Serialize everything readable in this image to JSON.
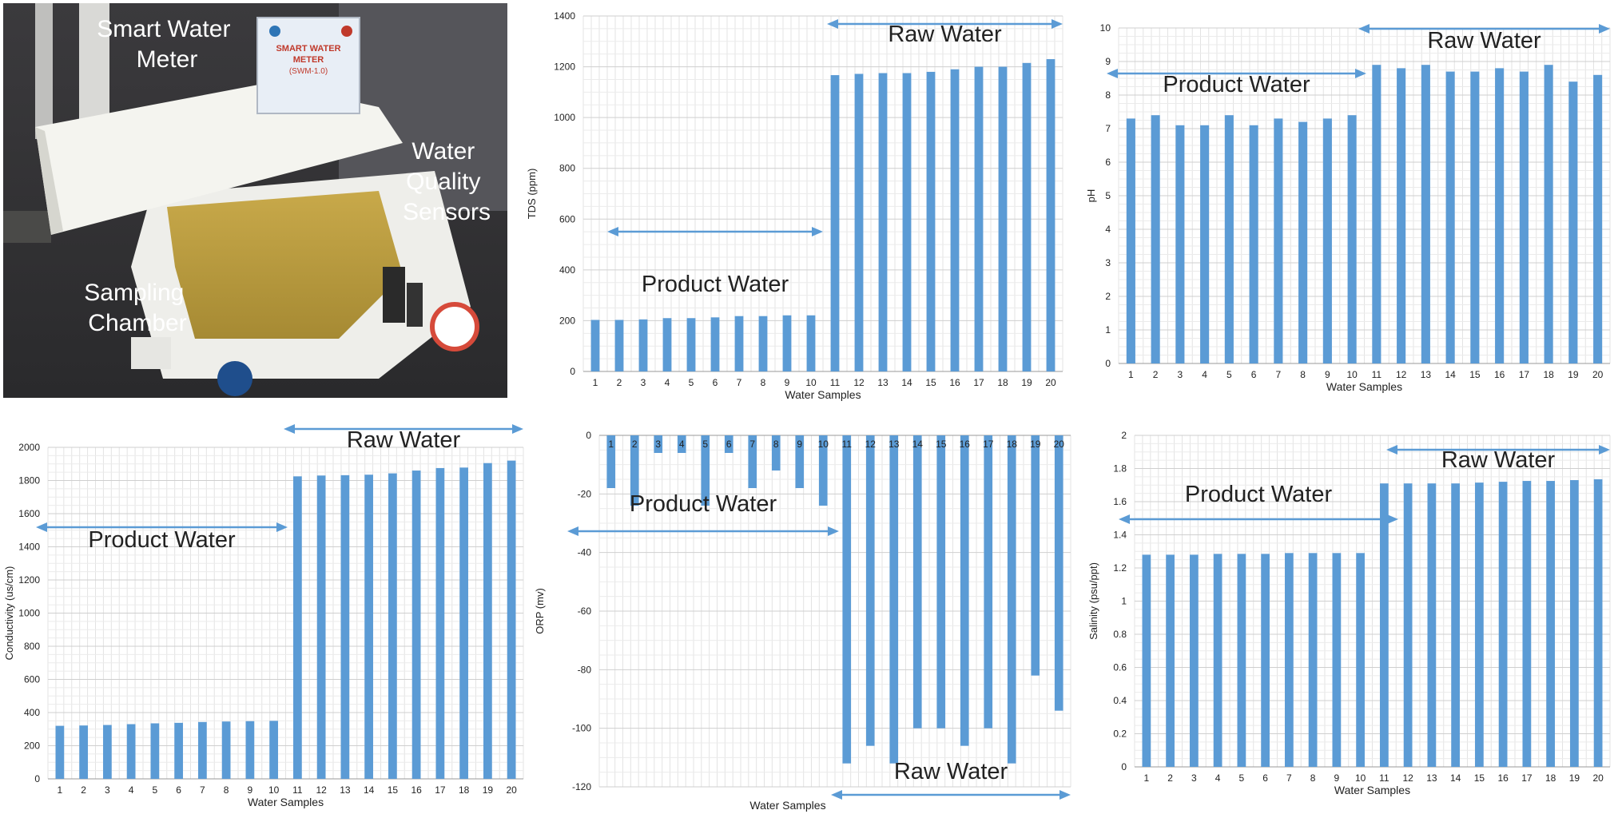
{
  "photo": {
    "labels": {
      "meter": "Smart Water Meter",
      "sensors": "Water Quality Sensors",
      "chamber": "Sampling Chamber"
    },
    "device_label": {
      "line1": "SMART WATER",
      "line2": "METER",
      "line3": "(SWM-1.0)"
    }
  },
  "chart_data": [
    {
      "id": "tds",
      "type": "bar",
      "ylabel": "TDS (ppm)",
      "xlabel": "Water Samples",
      "ylim": [
        0,
        1400
      ],
      "ytick_step": 200,
      "categories": [
        "1",
        "2",
        "3",
        "4",
        "5",
        "6",
        "7",
        "8",
        "9",
        "10",
        "11",
        "12",
        "13",
        "14",
        "15",
        "16",
        "17",
        "18",
        "19",
        "20"
      ],
      "values": [
        203,
        203,
        205,
        210,
        210,
        213,
        218,
        218,
        221,
        221,
        1167,
        1172,
        1175,
        1175,
        1180,
        1190,
        1200,
        1200,
        1215,
        1230
      ],
      "color": "#5b9bd5",
      "annotations": [
        {
          "text": "Product Water",
          "position": "left-middle"
        },
        {
          "text": "Raw Water",
          "position": "right-top"
        }
      ]
    },
    {
      "id": "ph",
      "type": "bar",
      "ylabel": "pH",
      "xlabel": "Water Samples",
      "ylim": [
        0,
        10
      ],
      "ytick_step": 1,
      "categories": [
        "1",
        "2",
        "3",
        "4",
        "5",
        "6",
        "7",
        "8",
        "9",
        "10",
        "11",
        "12",
        "13",
        "14",
        "15",
        "16",
        "17",
        "18",
        "19",
        "20"
      ],
      "values": [
        7.3,
        7.4,
        7.1,
        7.1,
        7.4,
        7.1,
        7.3,
        7.2,
        7.3,
        7.4,
        8.9,
        8.8,
        8.9,
        8.7,
        8.7,
        8.8,
        8.7,
        8.9,
        8.4,
        8.6
      ],
      "color": "#5b9bd5",
      "annotations": [
        {
          "text": "Product Water",
          "position": "left-top"
        },
        {
          "text": "Raw Water",
          "position": "right-top"
        }
      ]
    },
    {
      "id": "cond",
      "type": "bar",
      "ylabel": "Conductivity (us/cm)",
      "xlabel": "Water  Samples",
      "ylim": [
        0,
        2000
      ],
      "ytick_step": 200,
      "categories": [
        "1",
        "2",
        "3",
        "4",
        "5",
        "6",
        "7",
        "8",
        "9",
        "10",
        "11",
        "12",
        "13",
        "14",
        "15",
        "16",
        "17",
        "18",
        "19",
        "20"
      ],
      "values": [
        320,
        322,
        325,
        330,
        335,
        338,
        343,
        346,
        348,
        350,
        1825,
        1830,
        1832,
        1835,
        1843,
        1860,
        1875,
        1878,
        1905,
        1920
      ],
      "color": "#5b9bd5",
      "annotations": [
        {
          "text": "Product Water",
          "position": "left-bottom"
        },
        {
          "text": "Raw Water",
          "position": "right-top"
        }
      ]
    },
    {
      "id": "orp",
      "type": "bar",
      "ylabel": "ORP (mv)",
      "xlabel": "Water Samples",
      "ylim": [
        -120,
        0
      ],
      "ytick_step": 20,
      "categories": [
        "1",
        "2",
        "3",
        "4",
        "5",
        "6",
        "7",
        "8",
        "9",
        "10",
        "11",
        "12",
        "13",
        "14",
        "15",
        "16",
        "17",
        "18",
        "19",
        "20"
      ],
      "values": [
        -18,
        -24,
        -6,
        -6,
        -24,
        -6,
        -18,
        -12,
        -18,
        -24,
        -112,
        -106,
        -112,
        -100,
        -100,
        -106,
        -100,
        -112,
        -82,
        -94
      ],
      "color": "#5b9bd5",
      "annotations": [
        {
          "text": "Product Water",
          "position": "left-top"
        },
        {
          "text": "Raw Water",
          "position": "right-bottom"
        }
      ]
    },
    {
      "id": "sal",
      "type": "bar",
      "ylabel": "Salinity (psu/ppt)",
      "xlabel": "Water Samples",
      "ylim": [
        0,
        2
      ],
      "ytick_step": 0.2,
      "categories": [
        "1",
        "2",
        "3",
        "4",
        "5",
        "6",
        "7",
        "8",
        "9",
        "10",
        "11",
        "12",
        "13",
        "14",
        "15",
        "16",
        "17",
        "18",
        "19",
        "20"
      ],
      "values": [
        1.28,
        1.28,
        1.28,
        1.285,
        1.285,
        1.285,
        1.29,
        1.29,
        1.29,
        1.29,
        1.71,
        1.71,
        1.71,
        1.71,
        1.715,
        1.72,
        1.725,
        1.725,
        1.73,
        1.735
      ],
      "color": "#5b9bd5",
      "annotations": [
        {
          "text": "Product Water",
          "position": "left-top"
        },
        {
          "text": "Raw Water",
          "position": "right-top"
        }
      ]
    }
  ]
}
